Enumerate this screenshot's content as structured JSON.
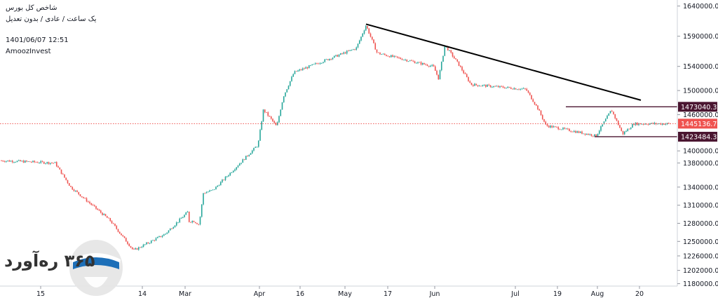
{
  "header": {
    "line1": "شاخص کل بورس",
    "line2": "یک ساعت / عادی / بدون تعدیل",
    "datetime": "1401/06/07 12:51",
    "brand": "AmoozInvest"
  },
  "logo": {
    "text": "۳۶۵ ره‌آورد"
  },
  "colors": {
    "up": "#26a69a",
    "down": "#ef5350",
    "trendline": "#000000",
    "range_line": "#4a1530",
    "current_price": "#ef5350",
    "label_dark": "#4a1530"
  },
  "chart_data": {
    "type": "candlestick",
    "title": "",
    "x_ticks": [
      "15",
      "14",
      "Mar",
      "Apr",
      "16",
      "May",
      "17",
      "Jun",
      "Jul",
      "19",
      "Aug",
      "20"
    ],
    "y_ticks": [
      1640000,
      1590000,
      1540000,
      1500000,
      1460000,
      1400000,
      1380000,
      1340000,
      1310000,
      1280000,
      1250000,
      1226000,
      1202000,
      1180000
    ],
    "ylim": [
      1176000,
      1650000
    ],
    "price_labels": [
      {
        "value": 1473040.32,
        "text": "1473040.32",
        "kind": "resistance"
      },
      {
        "value": 1445136.79,
        "text": "1445136.79",
        "kind": "current"
      },
      {
        "value": 1423484.3,
        "text": "1423484.30",
        "kind": "support"
      }
    ],
    "trendline": {
      "from": {
        "x": "May 17",
        "y": 1610000
      },
      "to": {
        "x": "Aug 31",
        "y": 1484000
      }
    },
    "series_path": [
      {
        "x": "start",
        "y": 1384000
      },
      {
        "x": "Feb 08",
        "y": 1380000
      },
      {
        "x": "Feb 10",
        "y": 1340000
      },
      {
        "x": "Feb 15",
        "y": 1285000
      },
      {
        "x": "Feb 18",
        "y": 1235000
      },
      {
        "x": "Feb 22",
        "y": 1262000
      },
      {
        "x": "Feb 25",
        "y": 1300000
      },
      {
        "x": "Mar 01",
        "y": 1282000
      },
      {
        "x": "Mar 08",
        "y": 1284000
      },
      {
        "x": "Mar 12",
        "y": 1278000
      },
      {
        "x": "Mar 15",
        "y": 1330000
      },
      {
        "x": "Mar 22",
        "y": 1335000
      },
      {
        "x": "Apr 01",
        "y": 1410000
      },
      {
        "x": "Apr 05",
        "y": 1468000
      },
      {
        "x": "Apr 10",
        "y": 1455000
      },
      {
        "x": "Apr 15",
        "y": 1440000
      },
      {
        "x": "Apr 20",
        "y": 1490000
      },
      {
        "x": "Apr 28",
        "y": 1530000
      },
      {
        "x": "May 10",
        "y": 1570000
      },
      {
        "x": "May 17",
        "y": 1608000
      },
      {
        "x": "May 25",
        "y": 1562000
      },
      {
        "x": "Jun 01",
        "y": 1540000
      },
      {
        "x": "Jun 05",
        "y": 1520000
      },
      {
        "x": "Jun 10",
        "y": 1575000
      },
      {
        "x": "Jun 20",
        "y": 1545000
      },
      {
        "x": "Jun 30",
        "y": 1510000
      },
      {
        "x": "Jul 10",
        "y": 1502000
      },
      {
        "x": "Jul 19",
        "y": 1470000
      },
      {
        "x": "Jul 25",
        "y": 1442000
      },
      {
        "x": "Aug 01",
        "y": 1425000
      },
      {
        "x": "Aug 12",
        "y": 1468000
      },
      {
        "x": "Aug 20",
        "y": 1428000
      },
      {
        "x": "Aug 28",
        "y": 1445000
      }
    ]
  }
}
